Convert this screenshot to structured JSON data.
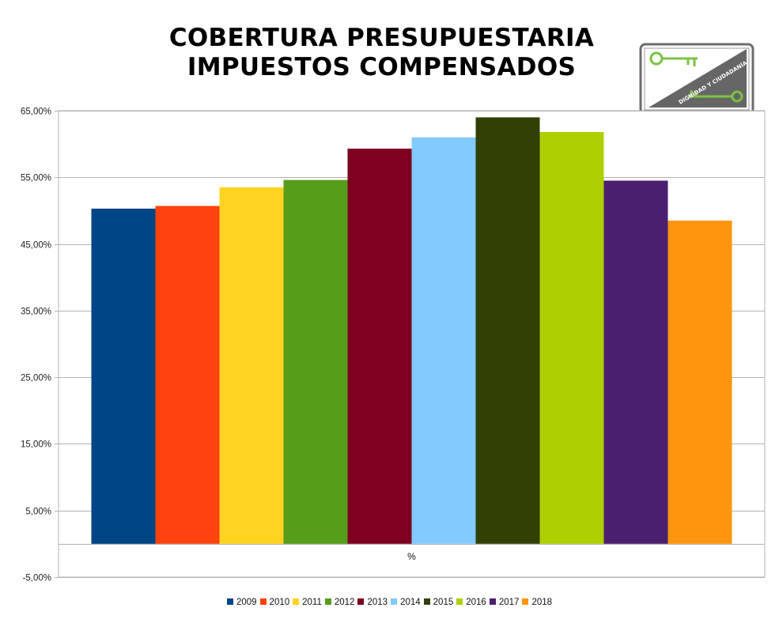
{
  "title_lines": [
    "COBERTURA PRESUPUESTARIA",
    "IMPUESTOS COMPENSADOS"
  ],
  "logo": {
    "text": "DIGNIDAD Y CIUDADANÍA",
    "icon": "key-icon",
    "colors": {
      "frame": "#6b6b6b",
      "triangle": "#666666",
      "key": "#7cc242"
    }
  },
  "chart_data": {
    "type": "bar",
    "categories": [
      "%"
    ],
    "series": [
      {
        "name": "2009",
        "values": [
          50.3
        ],
        "color": "#004586"
      },
      {
        "name": "2010",
        "values": [
          50.7
        ],
        "color": "#ff420e"
      },
      {
        "name": "2011",
        "values": [
          53.5
        ],
        "color": "#ffd320"
      },
      {
        "name": "2012",
        "values": [
          54.6
        ],
        "color": "#579d1c"
      },
      {
        "name": "2013",
        "values": [
          59.3
        ],
        "color": "#7e0021"
      },
      {
        "name": "2014",
        "values": [
          61.0
        ],
        "color": "#83caff"
      },
      {
        "name": "2015",
        "values": [
          64.0
        ],
        "color": "#314004"
      },
      {
        "name": "2016",
        "values": [
          61.8
        ],
        "color": "#aecf00"
      },
      {
        "name": "2017",
        "values": [
          54.5
        ],
        "color": "#4b1f6f"
      },
      {
        "name": "2018",
        "values": [
          48.5
        ],
        "color": "#ff950e"
      }
    ],
    "yticks": [
      65,
      55,
      45,
      35,
      25,
      15,
      5,
      -5
    ],
    "ytick_labels": [
      "65,00%",
      "55,00%",
      "45,00%",
      "35,00%",
      "25,00%",
      "15,00%",
      "5,00%",
      "-5,00%"
    ],
    "ylim": [
      -5,
      65
    ],
    "grid": true,
    "legend_position": "bottom"
  }
}
